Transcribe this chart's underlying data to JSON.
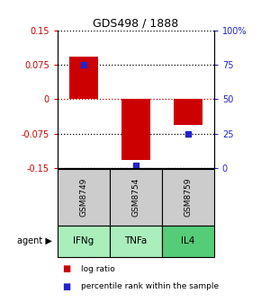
{
  "title": "GDS498 / 1888",
  "samples": [
    "GSM8749",
    "GSM8754",
    "GSM8759"
  ],
  "agents": [
    "IFNg",
    "TNFa",
    "IL4"
  ],
  "log_ratios": [
    0.092,
    -0.132,
    -0.057
  ],
  "percentile_ranks": [
    75.0,
    2.0,
    25.0
  ],
  "ylim_left": [
    -0.15,
    0.15
  ],
  "ylim_right": [
    0,
    100
  ],
  "left_ticks": [
    -0.15,
    -0.075,
    0,
    0.075,
    0.15
  ],
  "right_ticks": [
    0,
    25,
    50,
    75,
    100
  ],
  "right_tick_labels": [
    "0",
    "25",
    "50",
    "75",
    "100%"
  ],
  "bar_color": "#cc0000",
  "percentile_color": "#2222cc",
  "grid_color": "#000000",
  "zero_line_color": "#cc0000",
  "sample_box_color": "#cccccc",
  "agent_box_color_light": "#aaeebb",
  "agent_box_color_dark": "#55cc77",
  "bar_width": 0.55,
  "figwidth": 2.9,
  "figheight": 3.36,
  "dpi": 100
}
